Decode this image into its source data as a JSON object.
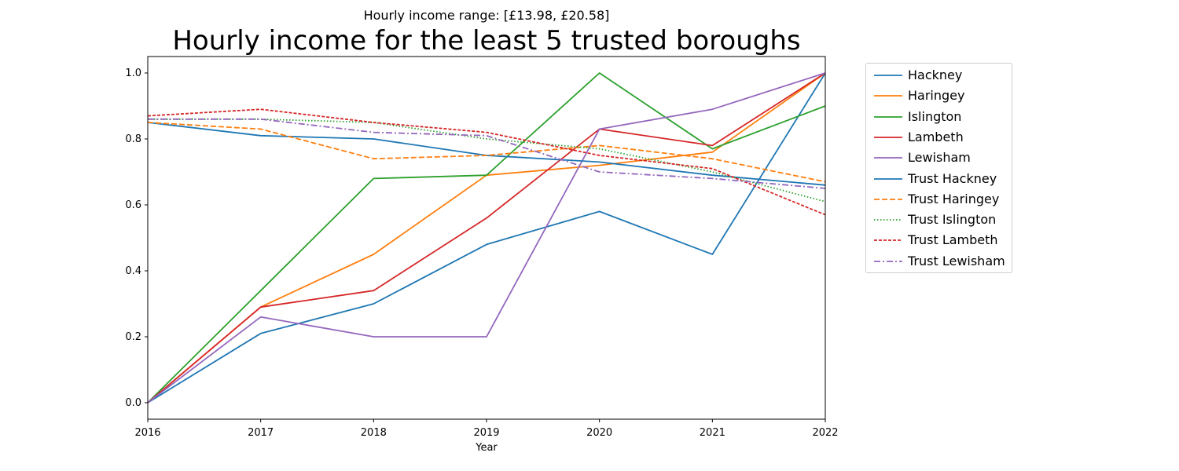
{
  "chart_data": {
    "type": "line",
    "subtitle": "Hourly income range: [£13.98, £20.58]",
    "title": "Hourly income for the least 5 trusted boroughs",
    "xlabel": "Year",
    "ylabel": "",
    "x": [
      2016,
      2017,
      2018,
      2019,
      2020,
      2021,
      2022
    ],
    "xlim": [
      2016,
      2022
    ],
    "ylim": [
      -0.05,
      1.05
    ],
    "yticks": [
      0.0,
      0.2,
      0.4,
      0.6,
      0.8,
      1.0
    ],
    "ytick_labels": [
      "0.0",
      "0.2",
      "0.4",
      "0.6",
      "0.8",
      "1.0"
    ],
    "xtick_labels": [
      "2016",
      "2017",
      "2018",
      "2019",
      "2020",
      "2021",
      "2022"
    ],
    "grid": false,
    "legend_position": "outside-right-top",
    "series": [
      {
        "name": "Hackney",
        "color": "#1f77b4",
        "style": "solid",
        "values": [
          0.0,
          0.21,
          0.3,
          0.48,
          0.58,
          0.45,
          1.0
        ]
      },
      {
        "name": "Haringey",
        "color": "#ff7f0e",
        "style": "solid",
        "values": [
          0.0,
          0.29,
          0.45,
          0.69,
          0.72,
          0.76,
          1.0
        ]
      },
      {
        "name": "Islington",
        "color": "#2ca02c",
        "style": "solid",
        "values": [
          0.0,
          0.34,
          0.68,
          0.69,
          1.0,
          0.77,
          0.9
        ]
      },
      {
        "name": "Lambeth",
        "color": "#d62728",
        "style": "solid",
        "values": [
          0.0,
          0.29,
          0.34,
          0.56,
          0.83,
          0.78,
          1.0
        ]
      },
      {
        "name": "Lewisham",
        "color": "#9467bd",
        "style": "solid",
        "values": [
          0.0,
          0.26,
          0.2,
          0.2,
          0.83,
          0.89,
          1.0
        ]
      },
      {
        "name": "Trust Hackney",
        "color": "#1f77b4",
        "style": "solid",
        "values": [
          0.85,
          0.81,
          0.8,
          0.75,
          0.73,
          0.69,
          0.66
        ]
      },
      {
        "name": "Trust Haringey",
        "color": "#ff7f0e",
        "style": "dashed",
        "values": [
          0.85,
          0.83,
          0.74,
          0.75,
          0.78,
          0.74,
          0.67
        ]
      },
      {
        "name": "Trust Islington",
        "color": "#2ca02c",
        "style": "dotted",
        "values": [
          0.86,
          0.86,
          0.85,
          0.8,
          0.77,
          0.7,
          0.61
        ]
      },
      {
        "name": "Trust Lambeth",
        "color": "#d62728",
        "style": "densedash",
        "values": [
          0.87,
          0.89,
          0.85,
          0.82,
          0.75,
          0.71,
          0.57
        ]
      },
      {
        "name": "Trust Lewisham",
        "color": "#9467bd",
        "style": "dashdot",
        "values": [
          0.86,
          0.86,
          0.82,
          0.81,
          0.7,
          0.68,
          0.65
        ]
      }
    ]
  }
}
